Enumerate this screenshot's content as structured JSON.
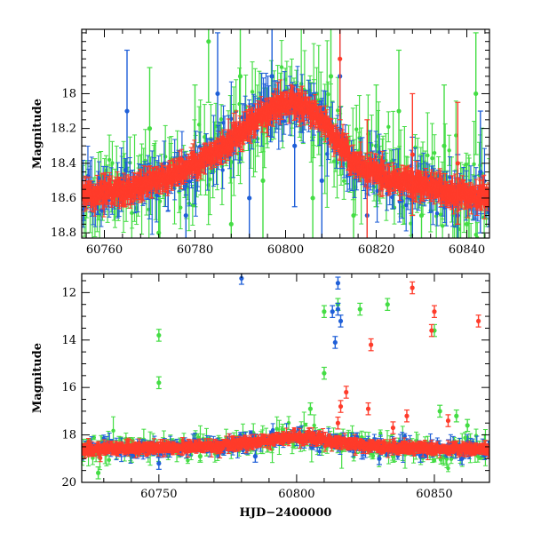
{
  "colors": {
    "green": "#44dd44",
    "blue": "#1f5fd8",
    "red": "#ff3b2a",
    "axis": "#000000"
  },
  "chart_data": [
    {
      "type": "scatter",
      "title": "",
      "xlabel": "",
      "ylabel": "Magnitude",
      "xlim": [
        60755,
        60845
      ],
      "ylim": [
        18.83,
        17.63
      ],
      "y_inverted": true,
      "xticks": [
        60760,
        60780,
        60800,
        60820,
        60840
      ],
      "yticks": [
        18,
        18.2,
        18.4,
        18.6,
        18.8
      ],
      "series": [
        {
          "color": "green",
          "error_bars": true,
          "trend": [
            [
              60757,
              18.58
            ],
            [
              60765,
              18.55
            ],
            [
              60775,
              18.47
            ],
            [
              60785,
              18.33
            ],
            [
              60795,
              18.12
            ],
            [
              60800,
              18.05
            ],
            [
              60805,
              18.07
            ],
            [
              60810,
              18.22
            ],
            [
              60815,
              18.4
            ],
            [
              60825,
              18.5
            ],
            [
              60835,
              18.56
            ],
            [
              60845,
              18.6
            ]
          ],
          "scatter_magnitude": 0.22,
          "points": [
            [
              60770,
              18.2
            ],
            [
              60772,
              18.8
            ],
            [
              60780,
              18.3
            ],
            [
              60783,
              17.7
            ],
            [
              60788,
              18.75
            ],
            [
              60790,
              17.9
            ],
            [
              60795,
              18.5
            ],
            [
              60806,
              18.6
            ],
            [
              60810,
              17.9
            ],
            [
              60815,
              18.7
            ],
            [
              60820,
              18.3
            ],
            [
              60825,
              18.1
            ],
            [
              60830,
              18.7
            ],
            [
              60835,
              18.3
            ],
            [
              60840,
              18.75
            ],
            [
              60842,
              18.0
            ]
          ]
        },
        {
          "color": "blue",
          "error_bars": true,
          "trend": [
            [
              60757,
              18.58
            ],
            [
              60765,
              18.55
            ],
            [
              60775,
              18.47
            ],
            [
              60785,
              18.33
            ],
            [
              60795,
              18.12
            ],
            [
              60800,
              18.05
            ],
            [
              60805,
              18.07
            ],
            [
              60810,
              18.22
            ],
            [
              60815,
              18.4
            ],
            [
              60825,
              18.5
            ],
            [
              60835,
              18.56
            ],
            [
              60845,
              18.6
            ]
          ],
          "scatter_magnitude": 0.12,
          "points": [
            [
              60765,
              18.1
            ],
            [
              60778,
              18.7
            ],
            [
              60785,
              18.0
            ],
            [
              60792,
              18.6
            ],
            [
              60797,
              17.9
            ],
            [
              60802,
              18.3
            ],
            [
              60808,
              18.5
            ],
            [
              60812,
              17.9
            ],
            [
              60818,
              18.7
            ],
            [
              60828,
              18.6
            ],
            [
              60838,
              18.7
            ],
            [
              60843,
              18.45
            ]
          ]
        },
        {
          "color": "red",
          "error_bars": true,
          "trend": [
            [
              60757,
              18.58
            ],
            [
              60765,
              18.55
            ],
            [
              60775,
              18.47
            ],
            [
              60785,
              18.33
            ],
            [
              60795,
              18.12
            ],
            [
              60800,
              18.05
            ],
            [
              60805,
              18.07
            ],
            [
              60810,
              18.22
            ],
            [
              60815,
              18.4
            ],
            [
              60825,
              18.5
            ],
            [
              60835,
              18.56
            ],
            [
              60845,
              18.6
            ]
          ],
          "scatter_magnitude": 0.05,
          "points": [
            [
              60812,
              17.8
            ],
            [
              60818,
              18.5
            ],
            [
              60828,
              18.35
            ],
            [
              60838,
              18.4
            ]
          ]
        }
      ]
    },
    {
      "type": "scatter",
      "title": "",
      "xlabel": "HJD−2400000",
      "ylabel": "Magnitude",
      "xlim": [
        60722,
        60870
      ],
      "ylim": [
        20.0,
        11.2
      ],
      "y_inverted": true,
      "xticks": [
        60750,
        60800,
        60850
      ],
      "yticks": [
        12,
        14,
        16,
        18,
        20
      ],
      "series": [
        {
          "color": "green",
          "error_bars": true,
          "trend": [
            [
              60725,
              18.6
            ],
            [
              60750,
              18.55
            ],
            [
              60775,
              18.45
            ],
            [
              60790,
              18.2
            ],
            [
              60800,
              18.05
            ],
            [
              60810,
              18.2
            ],
            [
              60825,
              18.45
            ],
            [
              60850,
              18.6
            ],
            [
              60868,
              18.6
            ]
          ],
          "scatter_magnitude": 0.5,
          "points": [
            [
              60750,
              13.8
            ],
            [
              60750,
              15.8
            ],
            [
              60810,
              12.8
            ],
            [
              60810,
              15.4
            ],
            [
              60815,
              12.5
            ],
            [
              60823,
              12.7
            ],
            [
              60833,
              12.5
            ],
            [
              60850,
              13.6
            ],
            [
              60852,
              17.0
            ],
            [
              60858,
              17.2
            ],
            [
              60862,
              17.6
            ],
            [
              60728,
              19.6
            ],
            [
              60740,
              18.9
            ],
            [
              60765,
              18.9
            ],
            [
              60795,
              17.8
            ],
            [
              60805,
              16.9
            ],
            [
              60835,
              18.9
            ]
          ]
        },
        {
          "color": "blue",
          "error_bars": true,
          "trend": [
            [
              60725,
              18.6
            ],
            [
              60750,
              18.55
            ],
            [
              60775,
              18.45
            ],
            [
              60790,
              18.2
            ],
            [
              60800,
              18.05
            ],
            [
              60810,
              18.2
            ],
            [
              60825,
              18.45
            ],
            [
              60850,
              18.6
            ],
            [
              60868,
              18.6
            ]
          ],
          "scatter_magnitude": 0.35,
          "points": [
            [
              60780,
              11.4
            ],
            [
              60815,
              11.6
            ],
            [
              60813,
              12.8
            ],
            [
              60815,
              12.7
            ],
            [
              60816,
              13.2
            ],
            [
              60814,
              14.1
            ],
            [
              60750,
              19.2
            ],
            [
              60785,
              18.9
            ],
            [
              60830,
              19.0
            ],
            [
              60845,
              18.9
            ],
            [
              60860,
              19.0
            ]
          ]
        },
        {
          "color": "red",
          "error_bars": true,
          "trend": [
            [
              60725,
              18.6
            ],
            [
              60750,
              18.55
            ],
            [
              60775,
              18.45
            ],
            [
              60790,
              18.2
            ],
            [
              60800,
              18.05
            ],
            [
              60810,
              18.2
            ],
            [
              60825,
              18.45
            ],
            [
              60850,
              18.6
            ],
            [
              60868,
              18.6
            ]
          ],
          "scatter_magnitude": 0.2,
          "points": [
            [
              60842,
              11.8
            ],
            [
              60850,
              12.8
            ],
            [
              60849,
              13.6
            ],
            [
              60866,
              13.2
            ],
            [
              60827,
              14.2
            ],
            [
              60818,
              16.2
            ],
            [
              60816,
              16.8
            ],
            [
              60826,
              16.9
            ],
            [
              60840,
              17.2
            ],
            [
              60855,
              17.4
            ],
            [
              60835,
              17.7
            ],
            [
              60815,
              17.5
            ]
          ]
        }
      ]
    }
  ]
}
